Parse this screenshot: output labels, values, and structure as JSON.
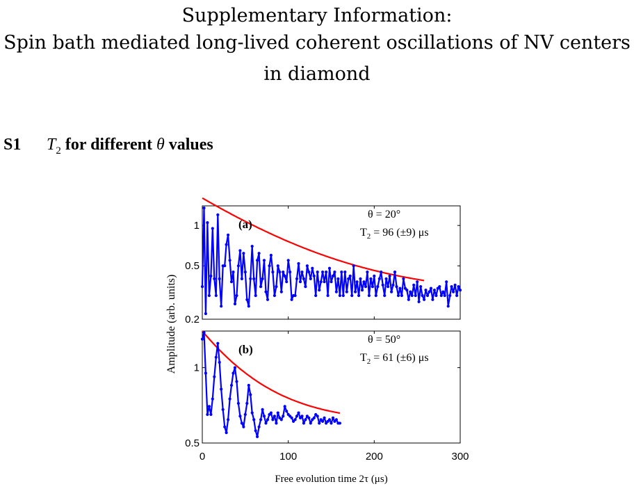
{
  "header": {
    "line1": "Supplementary Information:",
    "line2": "Spin bath mediated long-lived coherent oscillations of NV centers",
    "line3": "in diamond"
  },
  "section": {
    "number": "S1",
    "title_prefix": "T",
    "title_sub": "2",
    "title_mid": " for different ",
    "title_symbol": "θ",
    "title_suffix": " values"
  },
  "chart_data": {
    "type": "line",
    "x_axis": {
      "label": "Free evolution time 2τ (μs)",
      "range": [
        0,
        300
      ],
      "ticks": [
        "0",
        "100",
        "200",
        "300"
      ]
    },
    "y_axis_label": "Amplitude (arb. units)",
    "scale": "log",
    "colors": {
      "data": "#0000ff",
      "fit": "#ff0000"
    },
    "panels": [
      {
        "label": "(a)",
        "angle_text": "θ = 20°",
        "t2_text_prefix": "T",
        "t2_text_sub": "2",
        "t2_text_value": " = 96 (±9) μs",
        "ylim": [
          0.2,
          1.4
        ],
        "yticks": [
          "0.2",
          "0.5",
          "1"
        ],
        "ytick_values": [
          0.2,
          0.5,
          1
        ],
        "fit": {
          "A": 1.3,
          "T2": 96,
          "offset": 0.3,
          "x_range": [
            0,
            258
          ]
        },
        "data": [
          [
            0,
            0.35
          ],
          [
            2,
            1.35
          ],
          [
            4,
            0.22
          ],
          [
            6,
            1.05
          ],
          [
            8,
            0.3
          ],
          [
            10,
            0.42
          ],
          [
            12,
            0.95
          ],
          [
            14,
            0.4
          ],
          [
            16,
            0.3
          ],
          [
            18,
            1.2
          ],
          [
            20,
            0.4
          ],
          [
            22,
            0.25
          ],
          [
            24,
            0.5
          ],
          [
            26,
            0.5
          ],
          [
            28,
            0.72
          ],
          [
            30,
            0.85
          ],
          [
            32,
            0.55
          ],
          [
            34,
            0.38
          ],
          [
            36,
            0.45
          ],
          [
            38,
            0.26
          ],
          [
            40,
            0.3
          ],
          [
            42,
            0.5
          ],
          [
            44,
            0.65
          ],
          [
            46,
            0.4
          ],
          [
            48,
            0.62
          ],
          [
            50,
            0.45
          ],
          [
            52,
            0.28
          ],
          [
            54,
            0.25
          ],
          [
            56,
            0.4
          ],
          [
            58,
            0.7
          ],
          [
            60,
            0.4
          ],
          [
            62,
            0.3
          ],
          [
            64,
            0.55
          ],
          [
            66,
            0.62
          ],
          [
            68,
            0.35
          ],
          [
            70,
            0.4
          ],
          [
            72,
            0.55
          ],
          [
            74,
            0.32
          ],
          [
            76,
            0.28
          ],
          [
            78,
            0.5
          ],
          [
            80,
            0.6
          ],
          [
            82,
            0.45
          ],
          [
            84,
            0.3
          ],
          [
            86,
            0.35
          ],
          [
            88,
            0.5
          ],
          [
            90,
            0.45
          ],
          [
            92,
            0.32
          ],
          [
            94,
            0.45
          ],
          [
            96,
            0.42
          ],
          [
            98,
            0.38
          ],
          [
            100,
            0.55
          ],
          [
            102,
            0.45
          ],
          [
            104,
            0.28
          ],
          [
            106,
            0.3
          ],
          [
            108,
            0.3
          ],
          [
            110,
            0.4
          ],
          [
            112,
            0.52
          ],
          [
            114,
            0.38
          ],
          [
            116,
            0.45
          ],
          [
            118,
            0.4
          ],
          [
            120,
            0.35
          ],
          [
            122,
            0.5
          ],
          [
            124,
            0.45
          ],
          [
            126,
            0.4
          ],
          [
            128,
            0.48
          ],
          [
            130,
            0.42
          ],
          [
            132,
            0.3
          ],
          [
            134,
            0.45
          ],
          [
            136,
            0.33
          ],
          [
            138,
            0.38
          ],
          [
            140,
            0.45
          ],
          [
            142,
            0.38
          ],
          [
            144,
            0.45
          ],
          [
            146,
            0.3
          ],
          [
            148,
            0.48
          ],
          [
            150,
            0.38
          ],
          [
            152,
            0.42
          ],
          [
            154,
            0.45
          ],
          [
            156,
            0.32
          ],
          [
            158,
            0.4
          ],
          [
            160,
            0.3
          ],
          [
            162,
            0.45
          ],
          [
            164,
            0.3
          ],
          [
            166,
            0.45
          ],
          [
            168,
            0.32
          ],
          [
            170,
            0.4
          ],
          [
            172,
            0.42
          ],
          [
            174,
            0.3
          ],
          [
            176,
            0.5
          ],
          [
            178,
            0.32
          ],
          [
            180,
            0.38
          ],
          [
            182,
            0.3
          ],
          [
            184,
            0.4
          ],
          [
            186,
            0.33
          ],
          [
            188,
            0.38
          ],
          [
            190,
            0.35
          ],
          [
            192,
            0.45
          ],
          [
            194,
            0.3
          ],
          [
            196,
            0.4
          ],
          [
            198,
            0.35
          ],
          [
            200,
            0.42
          ],
          [
            202,
            0.3
          ],
          [
            204,
            0.35
          ],
          [
            206,
            0.4
          ],
          [
            208,
            0.45
          ],
          [
            210,
            0.36
          ],
          [
            212,
            0.3
          ],
          [
            214,
            0.4
          ],
          [
            216,
            0.35
          ],
          [
            218,
            0.42
          ],
          [
            220,
            0.32
          ],
          [
            222,
            0.36
          ],
          [
            224,
            0.45
          ],
          [
            226,
            0.35
          ],
          [
            228,
            0.3
          ],
          [
            230,
            0.34
          ],
          [
            232,
            0.3
          ],
          [
            234,
            0.4
          ],
          [
            236,
            0.34
          ],
          [
            238,
            0.33
          ],
          [
            240,
            0.28
          ],
          [
            242,
            0.32
          ],
          [
            244,
            0.3
          ],
          [
            246,
            0.36
          ],
          [
            248,
            0.3
          ],
          [
            250,
            0.38
          ],
          [
            252,
            0.27
          ],
          [
            254,
            0.35
          ],
          [
            256,
            0.3
          ],
          [
            258,
            0.28
          ],
          [
            260,
            0.33
          ],
          [
            262,
            0.3
          ],
          [
            264,
            0.32
          ],
          [
            266,
            0.34
          ],
          [
            268,
            0.28
          ],
          [
            270,
            0.33
          ],
          [
            272,
            0.3
          ],
          [
            274,
            0.34
          ],
          [
            276,
            0.35
          ],
          [
            278,
            0.3
          ],
          [
            280,
            0.32
          ],
          [
            282,
            0.3
          ],
          [
            284,
            0.38
          ],
          [
            286,
            0.25
          ],
          [
            288,
            0.3
          ],
          [
            290,
            0.35
          ],
          [
            292,
            0.32
          ],
          [
            294,
            0.36
          ],
          [
            296,
            0.3
          ],
          [
            298,
            0.35
          ],
          [
            300,
            0.33
          ]
        ]
      },
      {
        "label": "(b)",
        "angle_text": "θ = 50°",
        "t2_text_prefix": "T",
        "t2_text_sub": "2",
        "t2_text_value": " = 61 (±6) μs",
        "ylim": [
          0.5,
          1.4
        ],
        "yticks": [
          "0.5",
          "1"
        ],
        "ytick_values": [
          0.5,
          1
        ],
        "fit": {
          "A": 0.8,
          "T2": 61,
          "offset": 0.6,
          "x_range": [
            0,
            160
          ]
        },
        "data": [
          [
            0,
            1.3
          ],
          [
            2,
            1.38
          ],
          [
            4,
            0.95
          ],
          [
            6,
            0.65
          ],
          [
            8,
            0.7
          ],
          [
            10,
            0.65
          ],
          [
            12,
            0.75
          ],
          [
            14,
            0.92
          ],
          [
            16,
            1.1
          ],
          [
            18,
            1.25
          ],
          [
            20,
            1.05
          ],
          [
            22,
            0.82
          ],
          [
            24,
            0.68
          ],
          [
            26,
            0.58
          ],
          [
            28,
            0.55
          ],
          [
            30,
            0.62
          ],
          [
            32,
            0.75
          ],
          [
            34,
            0.85
          ],
          [
            36,
            0.95
          ],
          [
            38,
            1.0
          ],
          [
            40,
            0.88
          ],
          [
            42,
            0.72
          ],
          [
            44,
            0.64
          ],
          [
            46,
            0.6
          ],
          [
            48,
            0.58
          ],
          [
            50,
            0.65
          ],
          [
            52,
            0.72
          ],
          [
            54,
            0.85
          ],
          [
            56,
            0.78
          ],
          [
            58,
            0.66
          ],
          [
            60,
            0.62
          ],
          [
            62,
            0.56
          ],
          [
            64,
            0.53
          ],
          [
            66,
            0.58
          ],
          [
            68,
            0.62
          ],
          [
            70,
            0.68
          ],
          [
            72,
            0.64
          ],
          [
            74,
            0.6
          ],
          [
            76,
            0.62
          ],
          [
            78,
            0.65
          ],
          [
            80,
            0.66
          ],
          [
            82,
            0.62
          ],
          [
            84,
            0.64
          ],
          [
            86,
            0.6
          ],
          [
            88,
            0.66
          ],
          [
            90,
            0.63
          ],
          [
            92,
            0.62
          ],
          [
            94,
            0.64
          ],
          [
            96,
            0.7
          ],
          [
            98,
            0.67
          ],
          [
            100,
            0.65
          ],
          [
            102,
            0.64
          ],
          [
            104,
            0.63
          ],
          [
            106,
            0.61
          ],
          [
            108,
            0.62
          ],
          [
            110,
            0.64
          ],
          [
            112,
            0.66
          ],
          [
            114,
            0.63
          ],
          [
            116,
            0.64
          ],
          [
            118,
            0.6
          ],
          [
            120,
            0.62
          ],
          [
            122,
            0.64
          ],
          [
            124,
            0.63
          ],
          [
            126,
            0.6
          ],
          [
            128,
            0.62
          ],
          [
            130,
            0.63
          ],
          [
            132,
            0.65
          ],
          [
            134,
            0.64
          ],
          [
            136,
            0.6
          ],
          [
            138,
            0.62
          ],
          [
            140,
            0.61
          ],
          [
            142,
            0.63
          ],
          [
            144,
            0.6
          ],
          [
            146,
            0.61
          ],
          [
            148,
            0.62
          ],
          [
            150,
            0.6
          ],
          [
            152,
            0.63
          ],
          [
            154,
            0.61
          ],
          [
            156,
            0.62
          ],
          [
            158,
            0.6
          ],
          [
            160,
            0.6
          ]
        ]
      }
    ]
  }
}
